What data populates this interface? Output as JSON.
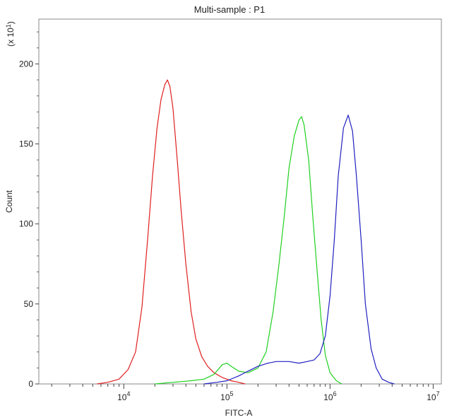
{
  "chart_data": {
    "type": "line",
    "title": "Multi-sample : P1",
    "xlabel": "FITC-A",
    "ylabel": "Count",
    "y_multiplier": "(x 10",
    "y_multiplier_exp": "1",
    "y_multiplier_close": ")",
    "x_scale": "log",
    "xlim": [
      1500,
      12000000
    ],
    "ylim": [
      0,
      228
    ],
    "x_ticks": [
      {
        "base": "10",
        "exp": "4",
        "value": 10000
      },
      {
        "base": "10",
        "exp": "5",
        "value": 100000
      },
      {
        "base": "10",
        "exp": "6",
        "value": 1000000
      },
      {
        "base": "10",
        "exp": "7",
        "value": 10000000
      }
    ],
    "y_ticks": [
      "0",
      "50",
      "100",
      "150",
      "200"
    ],
    "grid": false,
    "series": [
      {
        "color": "#e02020",
        "points": [
          [
            5500,
            0
          ],
          [
            7000,
            1
          ],
          [
            9000,
            3
          ],
          [
            11000,
            9
          ],
          [
            13000,
            20
          ],
          [
            15000,
            48
          ],
          [
            17000,
            90
          ],
          [
            19000,
            130
          ],
          [
            21000,
            160
          ],
          [
            23000,
            178
          ],
          [
            25000,
            187
          ],
          [
            26500,
            190
          ],
          [
            28000,
            186
          ],
          [
            30000,
            172
          ],
          [
            33000,
            140
          ],
          [
            36000,
            108
          ],
          [
            40000,
            75
          ],
          [
            45000,
            45
          ],
          [
            50000,
            28
          ],
          [
            57000,
            17
          ],
          [
            65000,
            11
          ],
          [
            75000,
            7
          ],
          [
            90000,
            4
          ],
          [
            110000,
            2
          ],
          [
            130000,
            1
          ],
          [
            150000,
            0
          ]
        ]
      },
      {
        "color": "#20d020",
        "points": [
          [
            20000,
            0
          ],
          [
            30000,
            1
          ],
          [
            45000,
            2
          ],
          [
            60000,
            3
          ],
          [
            75000,
            6
          ],
          [
            90000,
            12
          ],
          [
            100000,
            13
          ],
          [
            110000,
            11
          ],
          [
            130000,
            8
          ],
          [
            160000,
            7
          ],
          [
            200000,
            10
          ],
          [
            240000,
            20
          ],
          [
            280000,
            45
          ],
          [
            320000,
            75
          ],
          [
            360000,
            105
          ],
          [
            400000,
            135
          ],
          [
            450000,
            155
          ],
          [
            500000,
            165
          ],
          [
            530000,
            167
          ],
          [
            560000,
            162
          ],
          [
            620000,
            140
          ],
          [
            680000,
            105
          ],
          [
            750000,
            70
          ],
          [
            820000,
            40
          ],
          [
            900000,
            18
          ],
          [
            1000000,
            7
          ],
          [
            1150000,
            2
          ],
          [
            1300000,
            0
          ]
        ]
      },
      {
        "color": "#2020c0",
        "points": [
          [
            60000,
            0
          ],
          [
            80000,
            1
          ],
          [
            100000,
            2
          ],
          [
            130000,
            5
          ],
          [
            160000,
            8
          ],
          [
            200000,
            11
          ],
          [
            250000,
            13
          ],
          [
            300000,
            14
          ],
          [
            400000,
            14
          ],
          [
            500000,
            13
          ],
          [
            600000,
            14
          ],
          [
            700000,
            15
          ],
          [
            800000,
            19
          ],
          [
            900000,
            30
          ],
          [
            1000000,
            55
          ],
          [
            1100000,
            90
          ],
          [
            1200000,
            130
          ],
          [
            1350000,
            160
          ],
          [
            1500000,
            168
          ],
          [
            1650000,
            158
          ],
          [
            1800000,
            130
          ],
          [
            2000000,
            90
          ],
          [
            2200000,
            50
          ],
          [
            2500000,
            22
          ],
          [
            2800000,
            10
          ],
          [
            3200000,
            3
          ],
          [
            3700000,
            1
          ],
          [
            4200000,
            0
          ]
        ]
      }
    ]
  }
}
